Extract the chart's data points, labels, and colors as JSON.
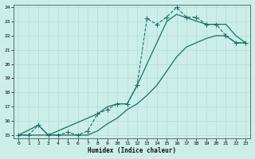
{
  "xlabel": "Humidex (Indice chaleur)",
  "bg_color": "#cceee8",
  "grid_color": "#bbdddd",
  "line_color": "#1a7068",
  "xlim": [
    -0.5,
    23.5
  ],
  "ylim": [
    14.8,
    24.2
  ],
  "xticks": [
    0,
    1,
    2,
    3,
    4,
    5,
    6,
    7,
    8,
    9,
    10,
    11,
    12,
    13,
    14,
    15,
    16,
    17,
    18,
    19,
    20,
    21,
    22,
    23
  ],
  "yticks": [
    15,
    16,
    17,
    18,
    19,
    20,
    21,
    22,
    23,
    24
  ],
  "dashed_x": [
    0,
    1,
    2,
    3,
    4,
    5,
    6,
    7,
    8,
    9,
    10,
    11,
    12,
    13,
    14,
    15,
    16,
    17,
    18,
    19,
    20,
    21,
    22,
    23
  ],
  "dashed_y": [
    15.0,
    15.0,
    15.7,
    15.0,
    15.0,
    15.2,
    15.0,
    15.3,
    16.5,
    16.8,
    17.2,
    17.2,
    18.5,
    23.2,
    22.8,
    23.3,
    24.0,
    23.3,
    23.3,
    22.8,
    22.8,
    22.0,
    21.5,
    21.5
  ],
  "upper_x": [
    0,
    2,
    3,
    8,
    9,
    10,
    11,
    12,
    13,
    15,
    16,
    19,
    20,
    21,
    22,
    23
  ],
  "upper_y": [
    15.0,
    15.7,
    15.0,
    16.5,
    17.0,
    17.2,
    17.2,
    18.5,
    20.0,
    23.0,
    23.5,
    22.8,
    22.8,
    22.8,
    22.0,
    21.5
  ],
  "lower_x": [
    0,
    1,
    2,
    3,
    4,
    5,
    6,
    7,
    8,
    9,
    10,
    11,
    12,
    13,
    14,
    15,
    16,
    17,
    18,
    19,
    20,
    21,
    22,
    23
  ],
  "lower_y": [
    15.0,
    15.0,
    15.0,
    15.0,
    15.0,
    15.0,
    15.0,
    15.0,
    15.3,
    15.8,
    16.2,
    16.8,
    17.2,
    17.8,
    18.5,
    19.5,
    20.5,
    21.2,
    21.5,
    21.8,
    22.0,
    22.0,
    21.5,
    21.5
  ]
}
